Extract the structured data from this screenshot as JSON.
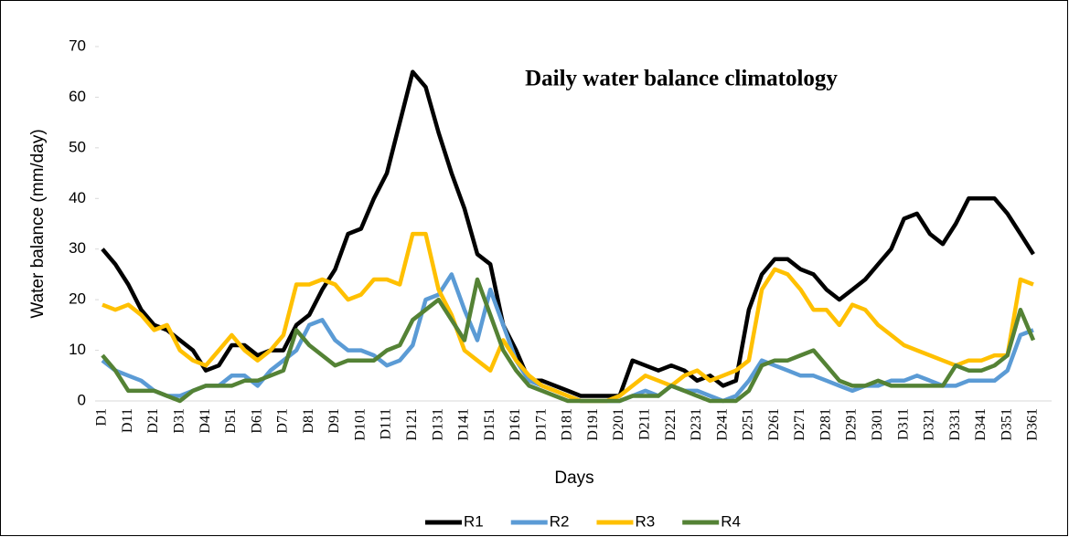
{
  "chart_data": {
    "type": "line",
    "title": "Daily water balance climatology",
    "y_label": "Water balance (mm/day)",
    "x_label": "Days",
    "categories": [
      "D1",
      null,
      "D11",
      null,
      "D21",
      null,
      "D31",
      null,
      "D41",
      null,
      "D51",
      null,
      "D61",
      null,
      "D71",
      null,
      "D81",
      null,
      "D91",
      null,
      "D101",
      null,
      "D111",
      null,
      "D121",
      null,
      "D131",
      null,
      "D141",
      null,
      "D151",
      null,
      "D161",
      null,
      "D171",
      null,
      "D181",
      null,
      "D191",
      null,
      "D201",
      null,
      "D211",
      null,
      "D221",
      null,
      "D231",
      null,
      "D241",
      null,
      "D251",
      null,
      "D261",
      null,
      "D271",
      null,
      "D281",
      null,
      "D291",
      null,
      "D301",
      null,
      "D311",
      null,
      "D321",
      null,
      "D331",
      null,
      "D341",
      null,
      "D351",
      null,
      "D361"
    ],
    "series": [
      {
        "name": "R1",
        "color": "#000000",
        "values": [
          30,
          27,
          23,
          18,
          15,
          14,
          12,
          10,
          6,
          7,
          11,
          11,
          9,
          10,
          10,
          15,
          17,
          22,
          26,
          33,
          34,
          40,
          45,
          55,
          65,
          62,
          53,
          45,
          38,
          29,
          27,
          15,
          10,
          4,
          4,
          3,
          2,
          1,
          1,
          1,
          1,
          8,
          7,
          6,
          7,
          6,
          4,
          5,
          3,
          4,
          18,
          25,
          28,
          28,
          26,
          25,
          22,
          20,
          22,
          24,
          27,
          30,
          36,
          37,
          33,
          31,
          35,
          40,
          40,
          40,
          37,
          33,
          29
        ]
      },
      {
        "name": "R2",
        "color": "#5b9bd5",
        "values": [
          8,
          6,
          5,
          4,
          2,
          1,
          1,
          2,
          3,
          3,
          5,
          5,
          3,
          6,
          8,
          10,
          15,
          16,
          12,
          10,
          10,
          9,
          7,
          8,
          11,
          20,
          21,
          25,
          18,
          12,
          22,
          15,
          8,
          4,
          3,
          2,
          1,
          0,
          0,
          0,
          0,
          1,
          2,
          1,
          3,
          2,
          2,
          1,
          0,
          1,
          4,
          8,
          7,
          6,
          5,
          5,
          4,
          3,
          2,
          3,
          3,
          4,
          4,
          5,
          4,
          3,
          3,
          4,
          4,
          4,
          6,
          13,
          14
        ]
      },
      {
        "name": "R3",
        "color": "#ffc000",
        "values": [
          19,
          18,
          19,
          17,
          14,
          15,
          10,
          8,
          7,
          10,
          13,
          10,
          8,
          10,
          13,
          23,
          23,
          24,
          23,
          20,
          21,
          24,
          24,
          23,
          33,
          33,
          22,
          17,
          10,
          8,
          6,
          12,
          8,
          5,
          3,
          2,
          1,
          0,
          0,
          0,
          1,
          3,
          5,
          4,
          3,
          5,
          6,
          4,
          5,
          6,
          8,
          22,
          26,
          25,
          22,
          18,
          18,
          15,
          19,
          18,
          15,
          13,
          11,
          10,
          9,
          8,
          7,
          8,
          8,
          9,
          9,
          24,
          23
        ]
      },
      {
        "name": "R4",
        "color": "#548235",
        "values": [
          9,
          6,
          2,
          2,
          2,
          1,
          0,
          2,
          3,
          3,
          3,
          4,
          4,
          5,
          6,
          14,
          11,
          9,
          7,
          8,
          8,
          8,
          10,
          11,
          16,
          18,
          20,
          16,
          12,
          24,
          17,
          10,
          6,
          3,
          2,
          1,
          0,
          0,
          0,
          0,
          0,
          1,
          1,
          1,
          3,
          2,
          1,
          0,
          0,
          0,
          2,
          7,
          8,
          8,
          9,
          10,
          7,
          4,
          3,
          3,
          4,
          3,
          3,
          3,
          3,
          3,
          7,
          6,
          6,
          7,
          9,
          18,
          12
        ]
      }
    ],
    "ylim": [
      0,
      70
    ],
    "yticks": [
      0,
      10,
      20,
      30,
      40,
      50,
      60,
      70
    ],
    "grid": false,
    "legend": "bottom"
  }
}
